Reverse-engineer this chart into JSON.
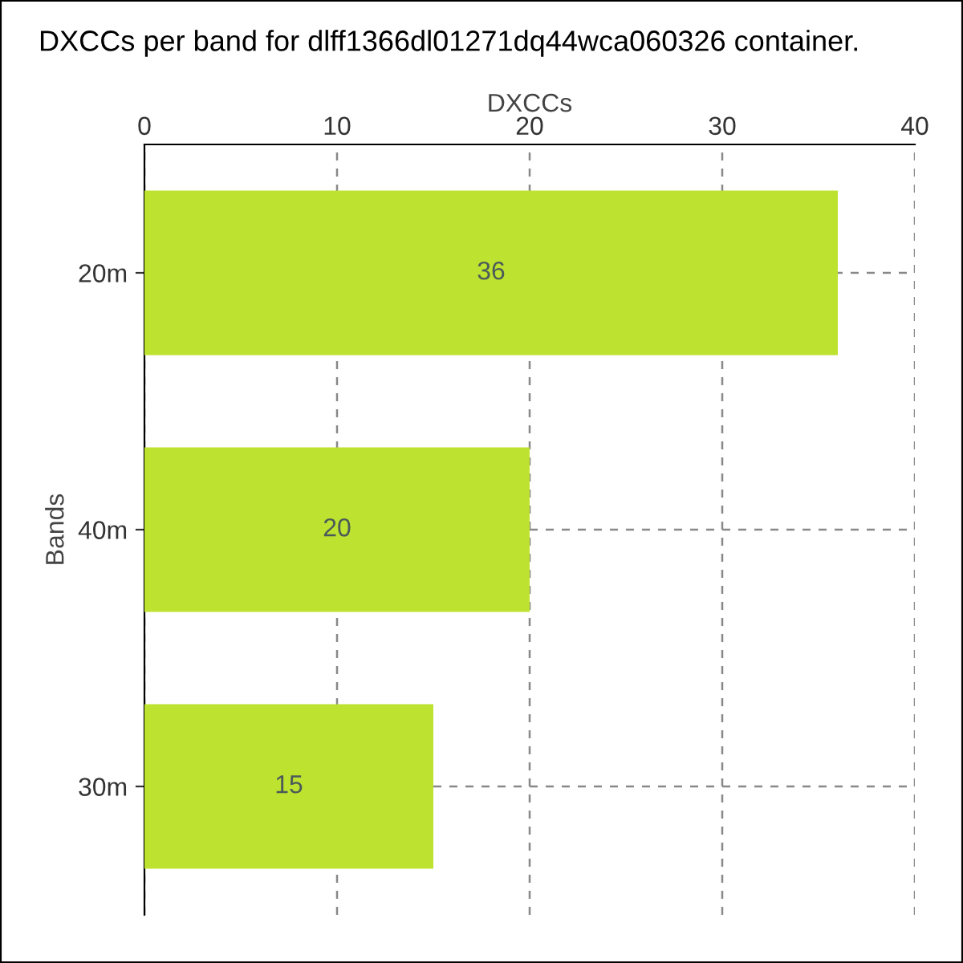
{
  "chart_data": {
    "type": "bar",
    "orientation": "horizontal",
    "title": "DXCCs per band for dlff1366dl01271dq44wca060326 container.",
    "xlabel": "DXCCs",
    "ylabel": "Bands",
    "categories": [
      "20m",
      "40m",
      "30m"
    ],
    "values": [
      36,
      20,
      15
    ],
    "color": "#bde22f",
    "xlim": [
      0,
      40
    ],
    "xticks": [
      0,
      10,
      20,
      30,
      40
    ],
    "grid": true,
    "data_labels": true
  }
}
